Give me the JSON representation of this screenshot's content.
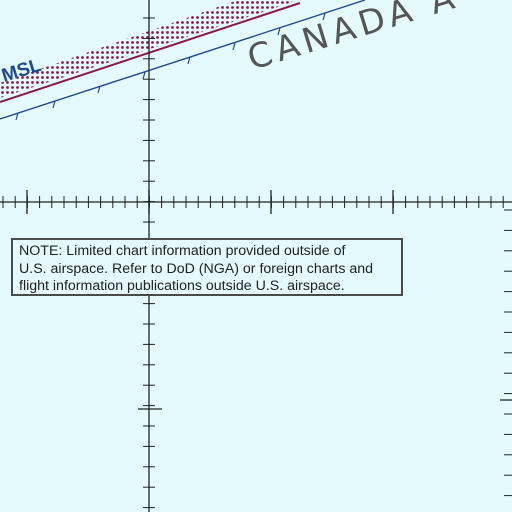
{
  "map": {
    "background_color": "#e4fafd",
    "region_label": "CANADA A",
    "altitude_label": "MSL",
    "note": {
      "lines": [
        "NOTE: Limited chart information provided outside of",
        "U.S. airspace. Refer to DoD (NGA) or foreign charts and",
        "flight information publications outside U.S. airspace."
      ]
    },
    "colors": {
      "airspace_boundary": "#8b1a4a",
      "altitude_text": "#1e4b8f",
      "grid_lines": "#222222",
      "region_text": "#555555"
    }
  }
}
